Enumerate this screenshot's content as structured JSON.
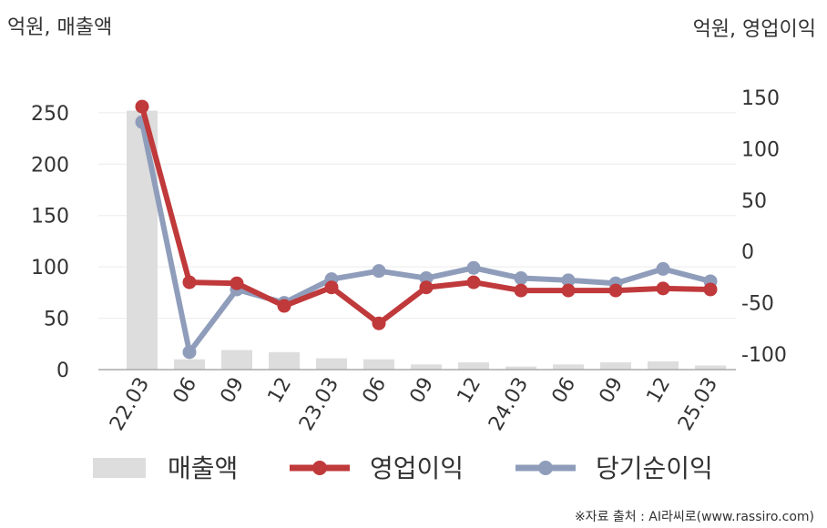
{
  "chart_data": {
    "type": "bar+line",
    "categories": [
      "22.03",
      "06",
      "09",
      "12",
      "23.03",
      "06",
      "09",
      "12",
      "24.03",
      "06",
      "09",
      "12",
      "25.03"
    ],
    "left_axis": {
      "label": "억원, 매출액",
      "ticks": [
        0,
        50,
        100,
        150,
        200,
        250
      ],
      "range": [
        0,
        280
      ]
    },
    "right_axis": {
      "label": "억원, 영업이익",
      "ticks": [
        -100,
        -50,
        0,
        50,
        100,
        150
      ],
      "range": [
        -115,
        165
      ]
    },
    "series": [
      {
        "name": "매출액",
        "type": "bar",
        "axis": "left",
        "color": "#dddddd",
        "values": [
          252,
          10,
          19,
          17,
          11,
          10,
          5,
          7,
          3,
          5,
          7,
          8,
          4
        ]
      },
      {
        "name": "영업이익",
        "type": "line",
        "axis": "right",
        "color": "#c0393b",
        "values": [
          141,
          -30,
          -31,
          -53,
          -35,
          -70,
          -35,
          -30,
          -38,
          -38,
          -38,
          -36,
          -37
        ]
      },
      {
        "name": "당기순이익",
        "type": "line",
        "axis": "right",
        "color": "#8f9dbb",
        "values": [
          126,
          -98,
          -37,
          -50,
          -27,
          -19,
          -26,
          -16,
          -26,
          -28,
          -31,
          -17,
          -29
        ]
      }
    ],
    "grid": true,
    "legend_position": "bottom"
  },
  "source_text": "※자료 출처 : AI라씨로(www.rassiro.com)"
}
